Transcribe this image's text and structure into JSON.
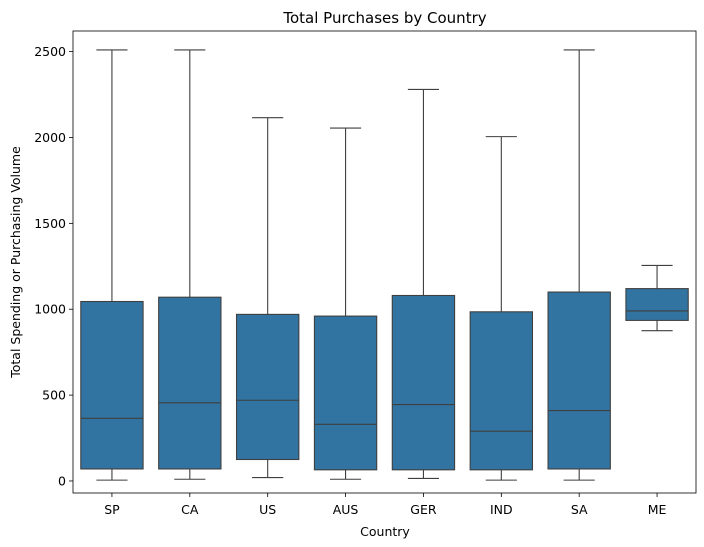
{
  "chart_data": {
    "type": "box",
    "title": "Total Purchases by Country",
    "xlabel": "Country",
    "ylabel": "Total Spending or Purchasing Volume",
    "ylim": [
      -70,
      2620
    ],
    "yticks": [
      0,
      500,
      1000,
      1500,
      2000,
      2500
    ],
    "box_color": "#3274a1",
    "line_color": "#3f3f3f",
    "categories": [
      "SP",
      "CA",
      "US",
      "AUS",
      "GER",
      "IND",
      "SA",
      "ME"
    ],
    "boxes": [
      {
        "category": "SP",
        "whisker_low": 5,
        "q1": 70,
        "median": 365,
        "q3": 1045,
        "whisker_high": 2510
      },
      {
        "category": "CA",
        "whisker_low": 10,
        "q1": 70,
        "median": 455,
        "q3": 1070,
        "whisker_high": 2510
      },
      {
        "category": "US",
        "whisker_low": 20,
        "q1": 125,
        "median": 470,
        "q3": 970,
        "whisker_high": 2115
      },
      {
        "category": "AUS",
        "whisker_low": 10,
        "q1": 65,
        "median": 330,
        "q3": 960,
        "whisker_high": 2055
      },
      {
        "category": "GER",
        "whisker_low": 15,
        "q1": 65,
        "median": 445,
        "q3": 1080,
        "whisker_high": 2280
      },
      {
        "category": "IND",
        "whisker_low": 5,
        "q1": 65,
        "median": 290,
        "q3": 985,
        "whisker_high": 2005
      },
      {
        "category": "SA",
        "whisker_low": 5,
        "q1": 70,
        "median": 410,
        "q3": 1100,
        "whisker_high": 2510
      },
      {
        "category": "ME",
        "whisker_low": 875,
        "q1": 935,
        "median": 990,
        "q3": 1120,
        "whisker_high": 1255
      }
    ]
  }
}
